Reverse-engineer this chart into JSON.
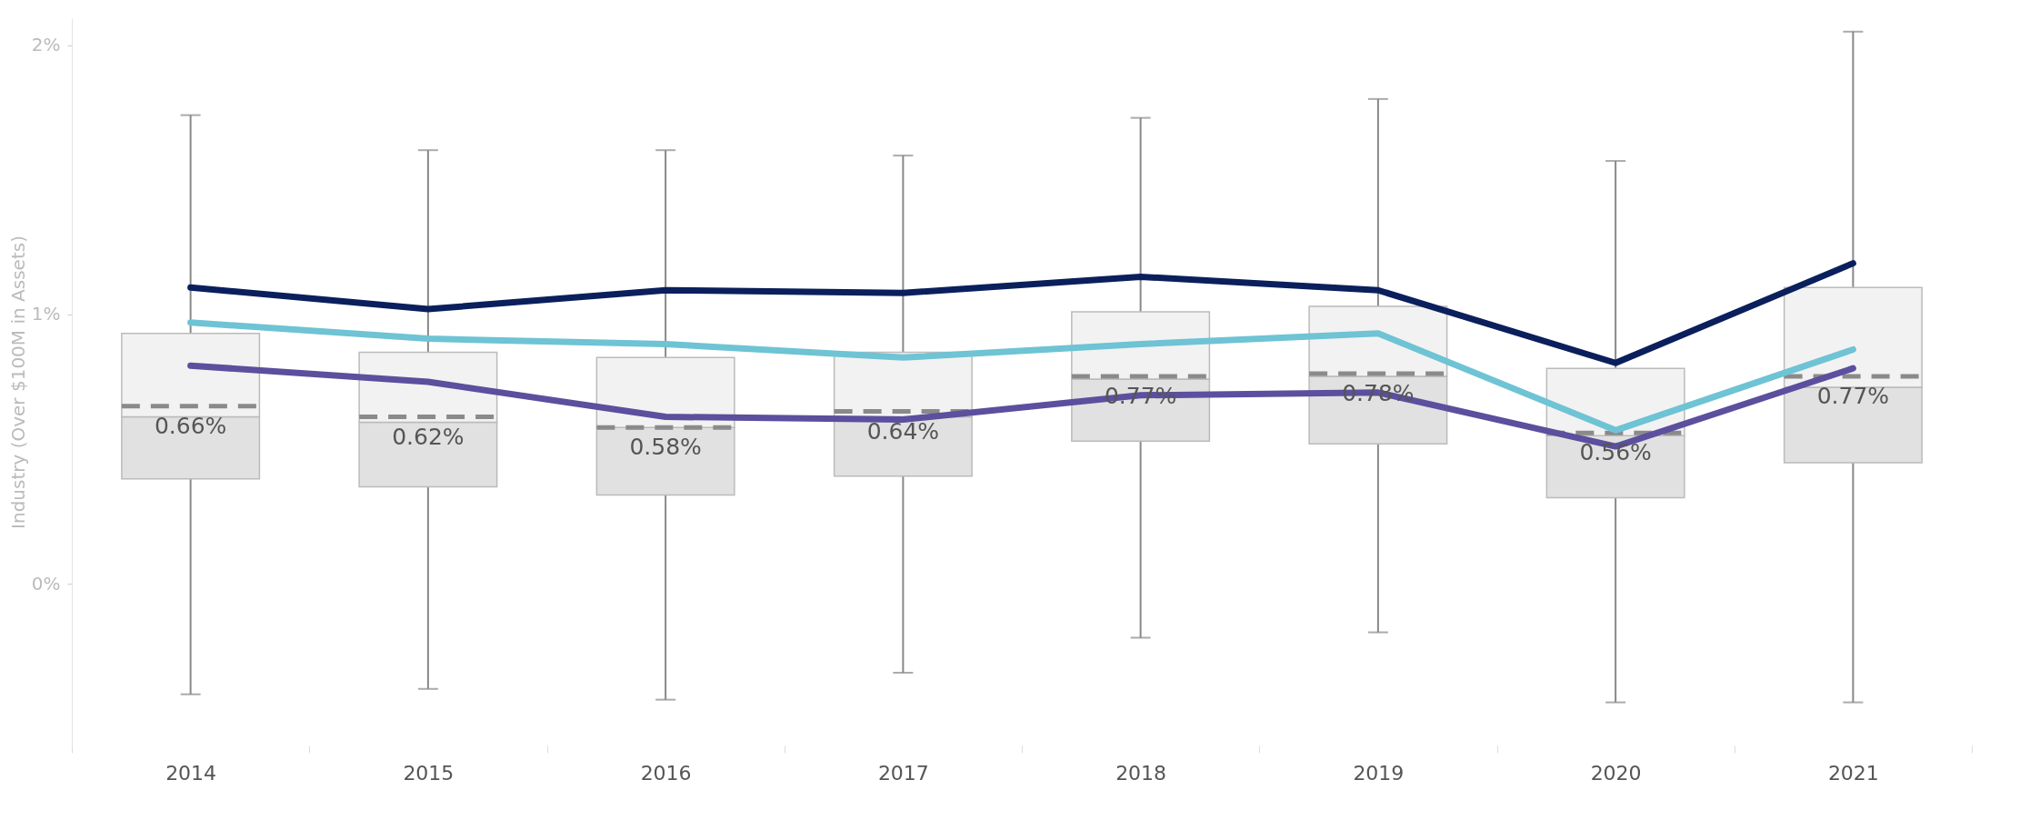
{
  "chart_data": {
    "type": "box",
    "ylabel": "Industry (Over $100M in Assets)",
    "categories": [
      "2014",
      "2015",
      "2016",
      "2017",
      "2018",
      "2019",
      "2020",
      "2021"
    ],
    "boxes": [
      {
        "low": -0.41,
        "q1": 0.39,
        "median": 0.62,
        "q3": 0.93,
        "high": 1.74,
        "mean": 0.66
      },
      {
        "low": -0.39,
        "q1": 0.36,
        "median": 0.6,
        "q3": 0.86,
        "high": 1.61,
        "mean": 0.62
      },
      {
        "low": -0.43,
        "q1": 0.33,
        "median": 0.58,
        "q3": 0.84,
        "high": 1.61,
        "mean": 0.58
      },
      {
        "low": -0.33,
        "q1": 0.4,
        "median": 0.62,
        "q3": 0.86,
        "high": 1.59,
        "mean": 0.64
      },
      {
        "low": -0.2,
        "q1": 0.53,
        "median": 0.76,
        "q3": 1.01,
        "high": 1.73,
        "mean": 0.77
      },
      {
        "low": -0.18,
        "q1": 0.52,
        "median": 0.77,
        "q3": 1.03,
        "high": 1.8,
        "mean": 0.78
      },
      {
        "low": -0.44,
        "q1": 0.32,
        "median": 0.55,
        "q3": 0.8,
        "high": 1.57,
        "mean": 0.56
      },
      {
        "low": -0.44,
        "q1": 0.45,
        "median": 0.73,
        "q3": 1.1,
        "high": 2.05,
        "mean": 0.77
      }
    ],
    "series": [
      {
        "type": "line",
        "color": "#0a1f5c",
        "values": [
          1.1,
          1.02,
          1.09,
          1.08,
          1.14,
          1.09,
          0.82,
          1.19
        ]
      },
      {
        "type": "line",
        "color": "#6ec3d4",
        "values": [
          0.97,
          0.91,
          0.89,
          0.84,
          0.89,
          0.93,
          0.57,
          0.87
        ]
      },
      {
        "type": "line",
        "color": "#5b4f9e",
        "values": [
          0.81,
          0.75,
          0.62,
          0.61,
          0.7,
          0.71,
          0.51,
          0.8
        ]
      }
    ],
    "annotations": [
      {
        "text": "0.66%",
        "x": "2014",
        "y": 0.66
      },
      {
        "text": "0.62%",
        "x": "2015",
        "y": 0.62
      },
      {
        "text": "0.58%",
        "x": "2016",
        "y": 0.58
      },
      {
        "text": "0.64%",
        "x": "2017",
        "y": 0.64
      },
      {
        "text": "0.77%",
        "x": "2018",
        "y": 0.77
      },
      {
        "text": "0.78%",
        "x": "2019",
        "y": 0.78
      },
      {
        "text": "0.56%",
        "x": "2020",
        "y": 0.56
      },
      {
        "text": "0.77%",
        "x": "2021",
        "y": 0.77
      }
    ],
    "ylim": [
      -0.6,
      2.1
    ],
    "yticks": [
      {
        "value": 0,
        "label": "0%"
      },
      {
        "value": 1,
        "label": "1%"
      },
      {
        "value": 2,
        "label": "2%"
      }
    ]
  }
}
